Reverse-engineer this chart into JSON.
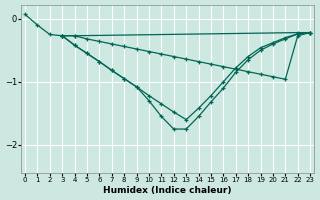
{
  "xlabel": "Humidex (Indice chaleur)",
  "bg_color": "#cce8e0",
  "line_color": "#006655",
  "grid_color": "#ffffff",
  "xlim": [
    -0.3,
    23.3
  ],
  "ylim": [
    -2.45,
    0.22
  ],
  "yticks": [
    0,
    -1,
    -2
  ],
  "xticks": [
    0,
    1,
    2,
    3,
    4,
    5,
    6,
    7,
    8,
    9,
    10,
    11,
    12,
    13,
    14,
    15,
    16,
    17,
    18,
    19,
    20,
    21,
    22,
    23
  ],
  "line1_x": [
    0,
    1,
    2,
    3,
    4,
    22,
    23
  ],
  "line1_y": [
    0.07,
    -0.1,
    -0.25,
    -0.27,
    -0.27,
    -0.22,
    -0.22
  ],
  "line2_x": [
    3,
    4,
    5,
    6,
    7,
    8,
    9,
    10,
    11,
    12,
    13,
    14,
    15,
    16,
    17,
    18,
    19,
    20,
    21,
    22,
    23
  ],
  "line2_y": [
    -0.27,
    -0.27,
    -0.32,
    -0.36,
    -0.4,
    -0.44,
    -0.48,
    -0.52,
    -0.56,
    -0.6,
    -0.64,
    -0.68,
    -0.72,
    -0.76,
    -0.8,
    -0.84,
    -0.88,
    -0.92,
    -0.96,
    -0.27,
    -0.22
  ],
  "line3_x": [
    3,
    4,
    5,
    6,
    7,
    8,
    9,
    10,
    11,
    12,
    13,
    14,
    15,
    16,
    17,
    18,
    19,
    20,
    21,
    22,
    23
  ],
  "line3_y": [
    -0.27,
    -0.42,
    -0.55,
    -0.68,
    -0.82,
    -0.95,
    -1.08,
    -1.22,
    -1.35,
    -1.48,
    -1.6,
    -1.42,
    -1.22,
    -1.0,
    -0.78,
    -0.6,
    -0.46,
    -0.38,
    -0.3,
    -0.24,
    -0.22
  ],
  "line4_x": [
    3,
    4,
    5,
    6,
    7,
    8,
    9,
    10,
    11,
    12,
    13,
    14,
    15,
    16,
    17,
    18,
    19,
    20,
    21,
    22,
    23
  ],
  "line4_y": [
    -0.27,
    -0.42,
    -0.55,
    -0.68,
    -0.82,
    -0.95,
    -1.08,
    -1.3,
    -1.55,
    -1.75,
    -1.75,
    -1.55,
    -1.32,
    -1.1,
    -0.85,
    -0.65,
    -0.5,
    -0.4,
    -0.32,
    -0.24,
    -0.22
  ]
}
